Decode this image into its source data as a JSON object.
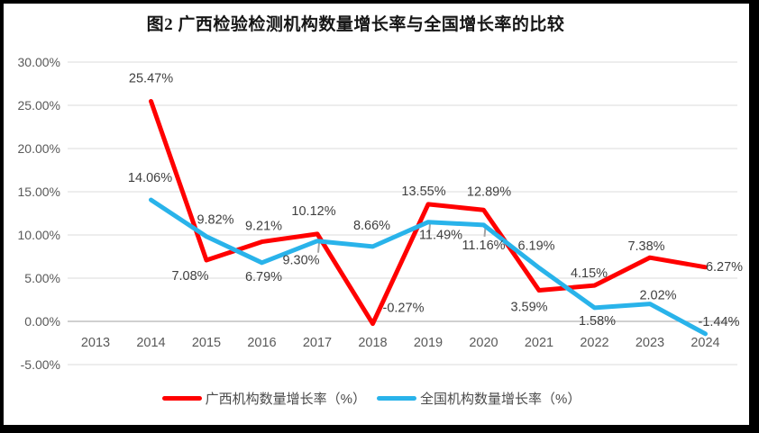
{
  "page": {
    "title": "图2 广西检验检测机构数量增长率与全国增长率的比较"
  },
  "legend": [
    {
      "label": "广西机构数量增长率（%）",
      "color": "#FF0000"
    },
    {
      "label": "全国机构数量增长率（%）",
      "color": "#29B3EA"
    }
  ],
  "colors": {
    "gridline": "#E2E2E2",
    "zero_line": "#C0C0C0",
    "axis_text": "#595959",
    "data_label_text": "#3F3F3F",
    "leader_tick": "#A3A3A3"
  },
  "chart_data": {
    "type": "line",
    "title": "图2 广西检验检测机构数量增长率与全国增长率的比较",
    "categories": [
      "2013",
      "2014",
      "2015",
      "2016",
      "2017",
      "2018",
      "2019",
      "2020",
      "2021",
      "2022",
      "2023",
      "2024"
    ],
    "series": [
      {
        "name": "广西机构数量增长率（%）",
        "color": "#FF0000",
        "values": [
          null,
          25.47,
          7.08,
          9.21,
          10.12,
          -0.27,
          13.55,
          12.89,
          3.59,
          4.15,
          7.38,
          6.27
        ],
        "labels": [
          "",
          "25.47%",
          "7.08%",
          "9.21%",
          "10.12%",
          "-0.27%",
          "13.55%",
          "12.89%",
          "3.59%",
          "4.15%",
          "7.38%",
          "6.27%"
        ],
        "label_offsets": [
          null,
          [
            0,
            -26
          ],
          [
            -18,
            17
          ],
          [
            2,
            -18
          ],
          [
            -4,
            -26
          ],
          [
            34,
            -18
          ],
          [
            -5,
            -15
          ],
          [
            6,
            -21
          ],
          [
            -11,
            18
          ],
          [
            -6,
            -14
          ],
          [
            -4,
            -13
          ],
          [
            21,
            -1
          ]
        ],
        "leader_indices": []
      },
      {
        "name": "全国机构数量增长率（%）",
        "color": "#29B3EA",
        "values": [
          null,
          14.06,
          9.82,
          6.79,
          9.3,
          8.66,
          11.49,
          11.16,
          6.19,
          1.58,
          2.02,
          -1.44
        ],
        "labels": [
          "",
          "14.06%",
          "9.82%",
          "6.79%",
          "9.30%",
          "8.66%",
          "11.49%",
          "11.16%",
          "6.19%",
          "1.58%",
          "2.02%",
          "-1.44%"
        ],
        "label_offsets": [
          null,
          [
            -1,
            -25
          ],
          [
            10,
            -19
          ],
          [
            2,
            15
          ],
          [
            -18,
            21
          ],
          [
            -1,
            -24
          ],
          [
            14,
            14
          ],
          [
            0,
            22
          ],
          [
            -3,
            -25
          ],
          [
            3,
            14
          ],
          [
            9,
            -10
          ],
          [
            15,
            -14
          ]
        ],
        "leader_indices": [
          4,
          6,
          7
        ]
      }
    ],
    "y_axis": {
      "min": -5,
      "max": 30,
      "step": 5,
      "tick_labels": [
        "30.00%",
        "25.00%",
        "20.00%",
        "15.00%",
        "10.00%",
        "5.00%",
        "0.00%",
        "-5.00%"
      ]
    },
    "x_axis": {
      "tick_labels": [
        "2013",
        "2014",
        "2015",
        "2016",
        "2017",
        "2018",
        "2019",
        "2020",
        "2021",
        "2022",
        "2023",
        "2024"
      ]
    },
    "grid": true,
    "legend_position": "bottom"
  }
}
